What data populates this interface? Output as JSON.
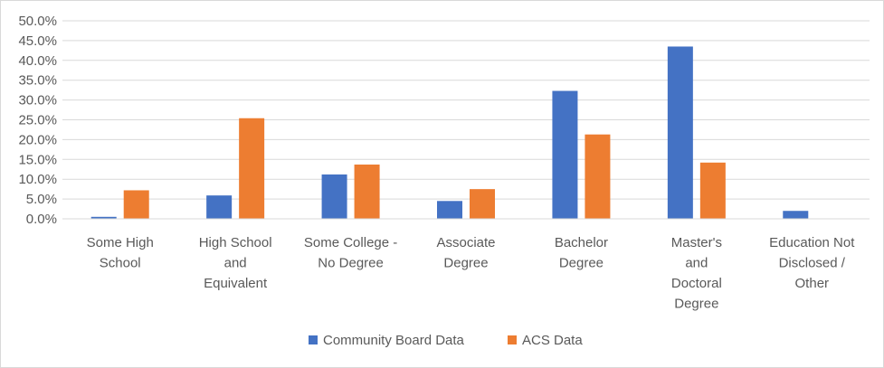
{
  "chart_data": {
    "type": "bar",
    "title": "",
    "xlabel": "",
    "ylabel": "",
    "categories": [
      [
        "Some High",
        "School"
      ],
      [
        "High School",
        "and",
        "Equivalent"
      ],
      [
        "Some College -",
        "No Degree"
      ],
      [
        "Associate",
        "Degree"
      ],
      [
        "Bachelor",
        "Degree"
      ],
      [
        "Master's",
        "and",
        "Doctoral",
        "Degree"
      ],
      [
        "Education Not",
        "Disclosed /",
        "Other"
      ]
    ],
    "series": [
      {
        "name": "Community Board Data",
        "color": "#4472c4",
        "values": [
          0.5,
          5.9,
          11.2,
          4.5,
          32.3,
          43.5,
          2.0
        ]
      },
      {
        "name": "ACS Data",
        "color": "#ed7d31",
        "values": [
          7.2,
          25.4,
          13.7,
          7.5,
          21.3,
          14.2,
          0
        ]
      }
    ],
    "ylim": [
      0,
      50
    ],
    "ytick_step": 5,
    "ytick_labels": [
      "0.0%",
      "5.0%",
      "10.0%",
      "15.0%",
      "20.0%",
      "25.0%",
      "30.0%",
      "35.0%",
      "40.0%",
      "45.0%",
      "50.0%"
    ],
    "grid": true,
    "legend_position": "bottom",
    "gridline_color": "#d9d9d9"
  }
}
